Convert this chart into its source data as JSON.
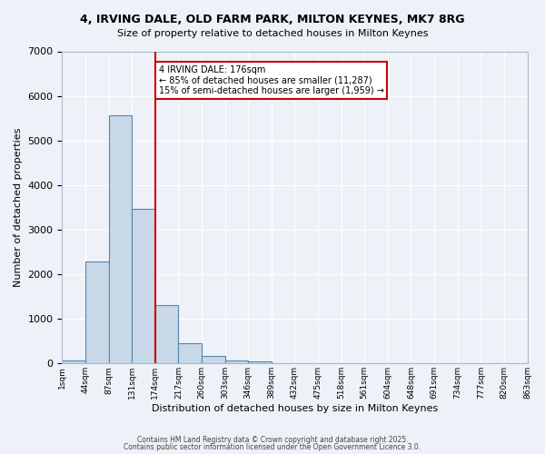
{
  "title_line1": "4, IRVING DALE, OLD FARM PARK, MILTON KEYNES, MK7 8RG",
  "title_line2": "Size of property relative to detached houses in Milton Keynes",
  "xlabel": "Distribution of detached houses by size in Milton Keynes",
  "ylabel": "Number of detached properties",
  "bin_labels": [
    "1sqm",
    "44sqm",
    "87sqm",
    "131sqm",
    "174sqm",
    "217sqm",
    "260sqm",
    "303sqm",
    "346sqm",
    "389sqm",
    "432sqm",
    "475sqm",
    "518sqm",
    "561sqm",
    "604sqm",
    "648sqm",
    "691sqm",
    "734sqm",
    "777sqm",
    "820sqm",
    "863sqm"
  ],
  "bar_heights": [
    75,
    2280,
    5560,
    3460,
    1300,
    460,
    160,
    75,
    50,
    0,
    0,
    0,
    0,
    0,
    0,
    0,
    0,
    0,
    0,
    0
  ],
  "bar_color": "#c8d8e8",
  "bar_edge_color": "#5588aa",
  "vline_x_index": 4,
  "vline_color": "#cc0000",
  "ylim": [
    0,
    7000
  ],
  "annotation_text": "4 IRVING DALE: 176sqm\n← 85% of detached houses are smaller (11,287)\n15% of semi-detached houses are larger (1,959) →",
  "annotation_box_color": "#ffffff",
  "annotation_box_edge_color": "#cc0000",
  "background_color": "#eef2f8",
  "grid_color": "#ffffff",
  "footer_line1": "Contains HM Land Registry data © Crown copyright and database right 2025.",
  "footer_line2": "Contains public sector information licensed under the Open Government Licence 3.0."
}
